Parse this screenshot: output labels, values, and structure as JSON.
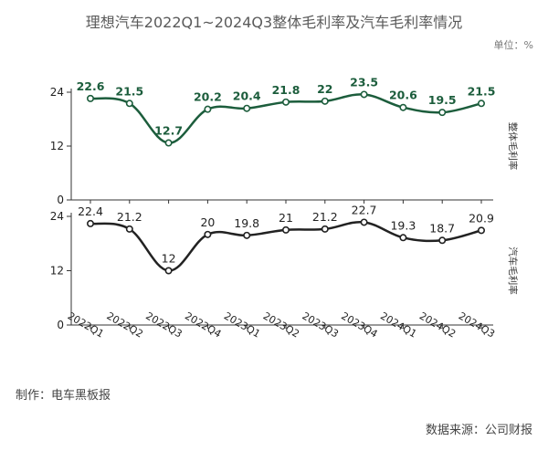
{
  "page": {
    "title": "理想汽车2022Q1~2024Q3整体毛利率及汽车毛利率情况",
    "unit": "单位：%",
    "made_by": "制作：电车黑板报",
    "source": "数据来源：公司财报"
  },
  "chart_data": {
    "type": "line",
    "categories": [
      "2022Q1",
      "2022Q2",
      "2022Q3",
      "2022Q4",
      "2023Q1",
      "2023Q2",
      "2023Q3",
      "2023Q4",
      "2024Q1",
      "2024Q2",
      "2024Q3"
    ],
    "panels": [
      {
        "name": "整体毛利率",
        "values": [
          22.6,
          21.5,
          12.7,
          20.2,
          20.4,
          21.8,
          22,
          23.5,
          20.6,
          19.5,
          21.5
        ],
        "labels": [
          "22.6",
          "21.5",
          "12.7",
          "20.2",
          "20.4",
          "21.8",
          "22",
          "23.5",
          "20.6",
          "19.5",
          "21.5"
        ],
        "ylim": [
          0,
          24
        ],
        "yticks": [
          0,
          12,
          24
        ],
        "color": "#1c5d3c"
      },
      {
        "name": "汽车毛利率",
        "values": [
          22.4,
          21.2,
          12,
          20,
          19.8,
          21,
          21.2,
          22.7,
          19.3,
          18.7,
          20.9
        ],
        "labels": [
          "22.4",
          "21.2",
          "12",
          "20",
          "19.8",
          "21",
          "21.2",
          "22.7",
          "19.3",
          "18.7",
          "20.9"
        ],
        "ylim": [
          0,
          24
        ],
        "yticks": [
          0,
          12,
          24
        ],
        "color": "#222222"
      }
    ],
    "grid": false
  }
}
